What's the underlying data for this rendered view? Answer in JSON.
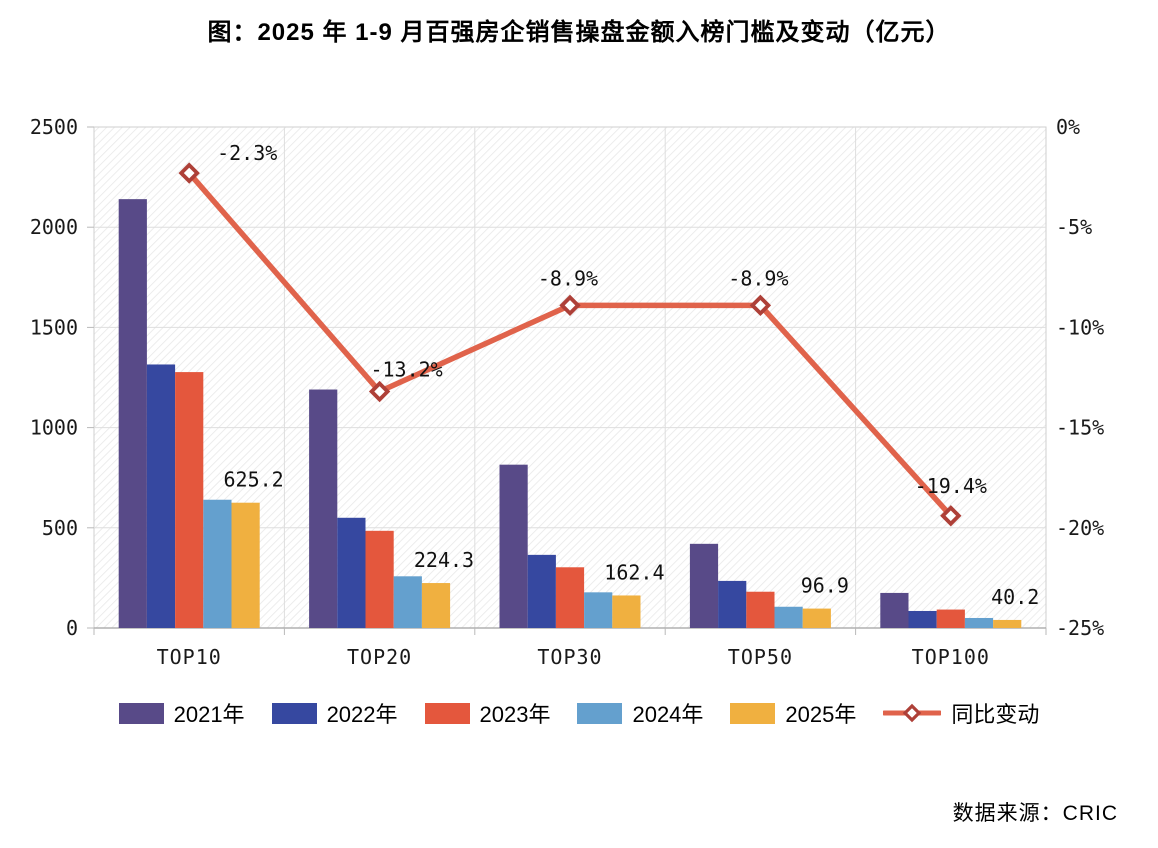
{
  "title": "图：2025 年 1-9 月百强房企销售操盘金额入榜门槛及变动（亿元）",
  "source": "数据来源：CRIC",
  "chart_data": {
    "type": "bar",
    "subtype": "grouped-bars-with-line-overlay",
    "title": "图：2025 年 1-9 月百强房企销售操盘金额入榜门槛及变动（亿元）",
    "categories": [
      "TOP10",
      "TOP20",
      "TOP30",
      "TOP50",
      "TOP100"
    ],
    "series": [
      {
        "name": "2021年",
        "type": "bar",
        "color": "#584A88",
        "values": [
          2140,
          1190,
          815,
          420,
          175
        ]
      },
      {
        "name": "2022年",
        "type": "bar",
        "color": "#3648A0",
        "values": [
          1315,
          550,
          365,
          235,
          85
        ]
      },
      {
        "name": "2023年",
        "type": "bar",
        "color": "#E4573D",
        "values": [
          1277,
          485,
          303,
          181,
          92
        ]
      },
      {
        "name": "2024年",
        "type": "bar",
        "color": "#64A0CE",
        "values": [
          640,
          258,
          178,
          106,
          50
        ]
      },
      {
        "name": "2025年",
        "type": "bar",
        "color": "#F0B040",
        "values": [
          625.2,
          224.3,
          162.4,
          96.9,
          40.2
        ],
        "data_labels": [
          "625.2",
          "224.3",
          "162.4",
          "96.9",
          "40.2"
        ]
      },
      {
        "name": "同比变动",
        "type": "line",
        "color": "#E0634B",
        "marker_color": "#AE4038",
        "values": [
          -2.3,
          -13.2,
          -8.9,
          -8.9,
          -19.4
        ],
        "data_labels": [
          "-2.3%",
          "-13.2%",
          "-8.9%",
          "-8.9%",
          "-19.4%"
        ]
      }
    ],
    "left_axis": {
      "min": 0,
      "max": 2500,
      "tick_labels": [
        "2500",
        "2000",
        "1500",
        "1000",
        "500",
        "0"
      ]
    },
    "right_axis": {
      "min": -25,
      "max": 0,
      "tick_labels": [
        "0%",
        "-5%",
        "-10%",
        "-15%",
        "-20%",
        "-25%"
      ]
    },
    "grid": true,
    "legend_position": "bottom",
    "plot_background": "diagonal-hatch"
  }
}
